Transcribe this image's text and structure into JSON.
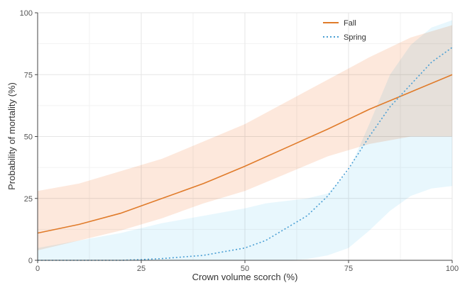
{
  "chart_data": {
    "type": "line",
    "xlabel": "Crown volume scorch (%)",
    "ylabel": "Probability of mortality (%)",
    "xlim": [
      0,
      100
    ],
    "ylim": [
      0,
      100
    ],
    "xticks": [
      0,
      25,
      50,
      75,
      100
    ],
    "yticks": [
      0,
      25,
      50,
      75,
      100
    ],
    "grid": true,
    "legend_position": "top-right",
    "series": [
      {
        "name": "Fall",
        "style": "solid",
        "color": "#e07b2a",
        "band_color": "#fbd9c4",
        "x": [
          0,
          10,
          20,
          30,
          40,
          50,
          60,
          70,
          80,
          90,
          100
        ],
        "y": [
          11,
          14.5,
          19,
          25,
          31,
          38,
          45.5,
          53,
          61,
          68,
          75
        ],
        "lower": [
          4,
          8,
          12,
          17,
          23,
          28,
          35,
          42,
          47,
          50,
          50
        ],
        "upper": [
          28,
          31,
          36,
          41,
          48,
          55,
          64,
          73,
          82,
          90,
          95
        ]
      },
      {
        "name": "Spring",
        "style": "dotted",
        "color": "#4a9fd4",
        "band_color": "#d8f1fb",
        "x": [
          0,
          10,
          20,
          25,
          30,
          40,
          50,
          55,
          60,
          65,
          70,
          75,
          80,
          85,
          90,
          95,
          100
        ],
        "y": [
          0,
          0,
          0,
          0.3,
          0.7,
          2,
          5,
          8,
          13,
          18,
          26,
          37,
          50,
          62,
          71,
          80,
          86
        ],
        "lower": [
          0,
          0,
          0,
          0,
          0,
          0,
          0,
          0,
          0,
          0.5,
          2,
          5,
          12,
          20,
          26,
          29,
          30
        ],
        "upper": [
          5,
          8,
          11,
          13,
          15,
          18,
          21,
          23,
          24,
          25,
          27,
          36,
          55,
          75,
          87,
          94,
          97
        ]
      }
    ]
  }
}
